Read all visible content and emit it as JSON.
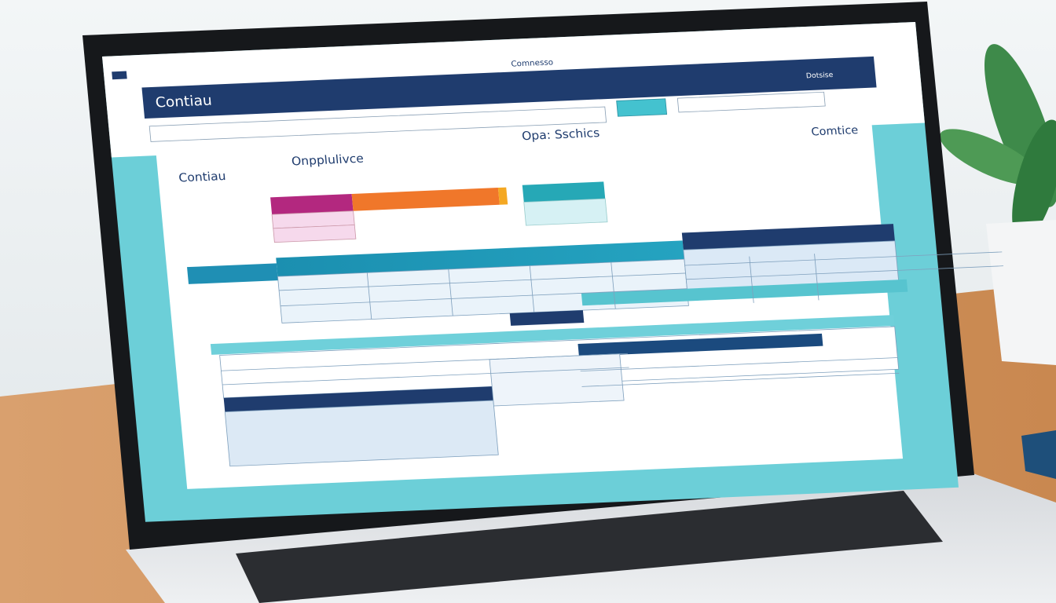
{
  "screen": {
    "top_label": "Comnesso",
    "top_right": "Dotsise",
    "header_title": "Contiau",
    "page_title": "Contiau",
    "section_title": "Onpplulivce",
    "center_title": "Opa: Sschics",
    "right_title": "Comtice"
  }
}
